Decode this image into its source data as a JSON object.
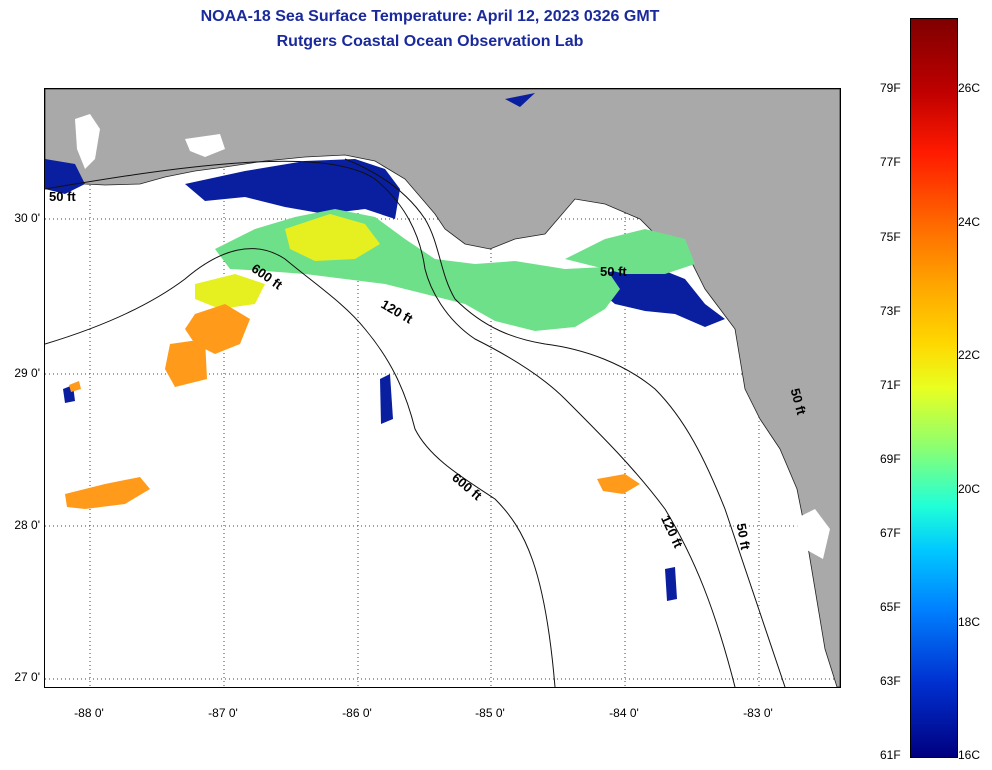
{
  "title_line1": "NOAA-18 Sea Surface Temperature:  April 12, 2023 0326 GMT",
  "title_line2": "Rutgers Coastal Ocean Observation Lab",
  "lat_labels": [
    "30 0'",
    "29 0'",
    "28 0'",
    "27 0'"
  ],
  "lon_labels": [
    "-88 0'",
    "-87 0'",
    "-86 0'",
    "-85 0'",
    "-84 0'",
    "-83 0'"
  ],
  "depth_labels": [
    "50 ft",
    "600 ft",
    "120 ft",
    "50 ft",
    "600 ft",
    "120 ft",
    "50 ft",
    "50 ft"
  ],
  "colorbar": {
    "fahrenheit": [
      "79F",
      "77F",
      "75F",
      "73F",
      "71F",
      "69F",
      "67F",
      "65F",
      "63F",
      "61F"
    ],
    "celsius": [
      "26C",
      "24C",
      "22C",
      "20C",
      "18C",
      "16C"
    ]
  },
  "colors": {
    "land": "#a9a9a9",
    "title": "#1a2a9c"
  }
}
